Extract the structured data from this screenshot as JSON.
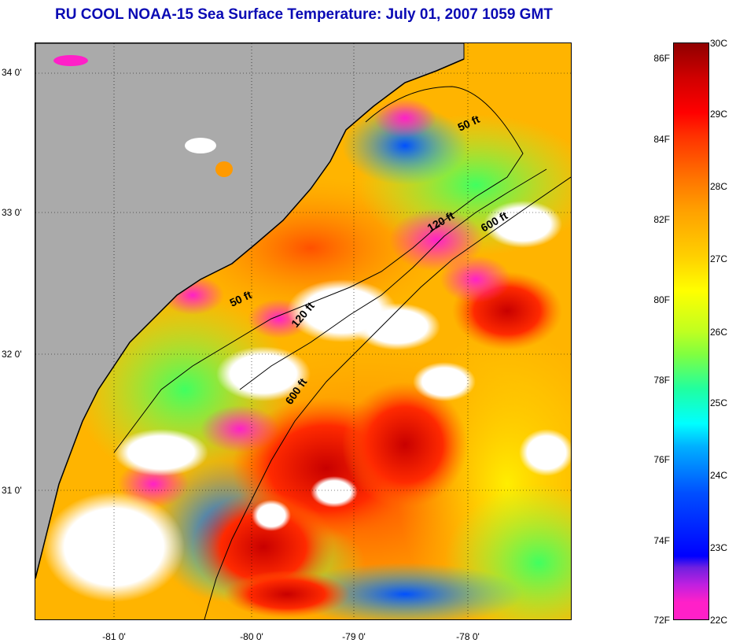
{
  "title": "RU COOL  NOAA-15  Sea Surface Temperature:  July 01, 2007 1059 GMT",
  "axes": {
    "lat_labels": [
      "34 0'",
      "33 0'",
      "32 0'",
      "31 0'"
    ],
    "lon_labels": [
      "-81 0'",
      "-80 0'",
      "-79 0'",
      "-78 0'"
    ]
  },
  "isobaths": {
    "contour_50_a": "50 ft",
    "contour_50_b": "50 ft",
    "contour_120_a": "120 ft",
    "contour_120_b": "120 ft",
    "contour_600_a": "600 ft",
    "contour_600_b": "600 ft"
  },
  "colorbar": {
    "fahrenheit_labels": [
      "86F",
      "84F",
      "82F",
      "80F",
      "78F",
      "76F",
      "74F",
      "72F"
    ],
    "celsius_labels": [
      "30C",
      "29C",
      "28C",
      "27C",
      "26C",
      "25C",
      "24C",
      "23C",
      "22C"
    ]
  },
  "colors": {
    "land": "#aaaaaa",
    "cloud_nodata": "#ffffff",
    "title_text": "#0a0ab4",
    "cold_22C": "#ff20c8",
    "warm_30C": "#900000"
  }
}
